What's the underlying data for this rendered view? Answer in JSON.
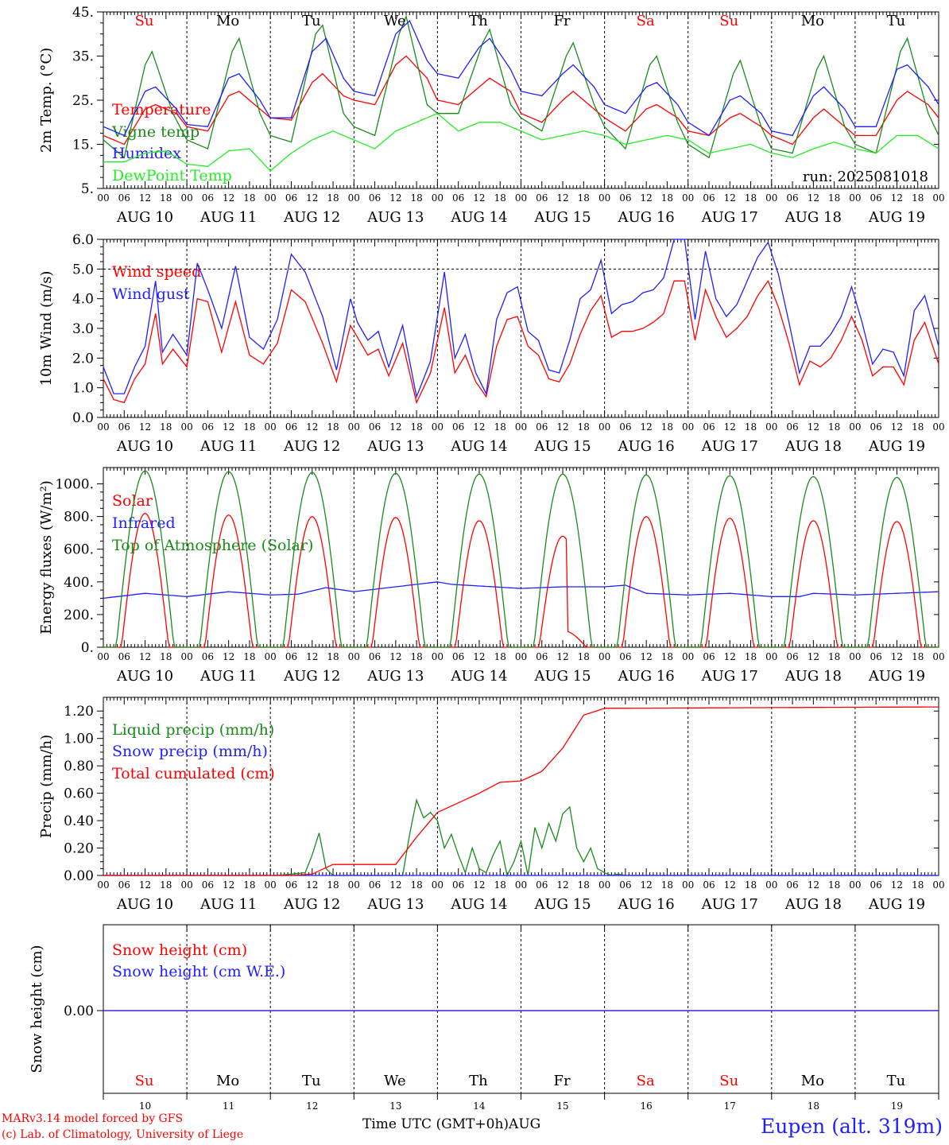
{
  "days": [
    "Su",
    "Mo",
    "Tu",
    "We",
    "Th",
    "Fr",
    "Sa",
    "Su",
    "Mo",
    "Tu"
  ],
  "weekend_days": [
    0,
    6,
    7
  ],
  "date_labels": [
    "AUG 10",
    "AUG 11",
    "AUG 12",
    "AUG 13",
    "AUG 14",
    "AUG 15",
    "AUG 16",
    "AUG 17",
    "AUG 18",
    "AUG 19"
  ],
  "bottom_dates": [
    "10",
    "11",
    "12",
    "13",
    "14",
    "15",
    "16",
    "17",
    "18",
    "19"
  ],
  "hour_ticks": [
    "00",
    "06",
    "12",
    "18"
  ],
  "run_label": "run: 2025081018",
  "footer": {
    "credit_line1": "MARv3.14 model forced by GFS",
    "credit_line2": "(c) Lab. of Climatology, University of Liege",
    "x_title": "Time UTC (GMT+0h)AUG",
    "station": "Eupen (alt. 319m)"
  },
  "colors": {
    "red": "#ff0000",
    "green": "#1a8a1a",
    "blue": "#1f1fff",
    "light_green": "#22ee22",
    "weekend": "#ff0000",
    "grid": "#000000"
  },
  "chart_data": [
    {
      "type": "line",
      "ylabel": "2m Temp. (°C)",
      "ylim": [
        5,
        45
      ],
      "yticks": [
        5,
        15,
        25,
        35,
        45
      ],
      "ytick_labels": [
        "5.",
        "15.",
        "25.",
        "35.",
        "45."
      ],
      "x_unit": "hours since Aug 10 00 UTC",
      "series": [
        {
          "name": "Temperature",
          "color": "red",
          "x": [
            0,
            6,
            12,
            15,
            21,
            24,
            30,
            36,
            39,
            45,
            48,
            54,
            60,
            63,
            69,
            72,
            78,
            84,
            87,
            93,
            96,
            102,
            108,
            111,
            117,
            120,
            126,
            132,
            135,
            141,
            144,
            150,
            156,
            159,
            165,
            168,
            174,
            180,
            183,
            189,
            192,
            198,
            204,
            207,
            213,
            216,
            222,
            228,
            231,
            237,
            240
          ],
          "y": [
            17,
            15,
            23,
            24,
            22,
            19,
            18,
            26,
            27,
            23,
            21,
            20.5,
            29,
            31,
            26,
            25,
            24,
            33,
            35,
            30,
            25,
            24,
            28,
            30,
            27,
            22,
            20,
            25,
            27,
            23,
            21,
            18,
            23,
            24,
            21,
            18,
            17,
            21,
            22,
            19,
            17,
            15,
            21,
            23,
            19,
            17,
            17,
            25,
            27,
            24,
            21
          ]
        },
        {
          "name": "Vigne temp",
          "color": "green",
          "x": [
            0,
            6,
            12,
            14,
            20,
            24,
            30,
            37,
            39,
            45,
            48,
            54,
            61,
            63,
            69,
            72,
            78,
            85,
            87,
            93,
            96,
            102,
            109,
            111,
            117,
            120,
            126,
            133,
            135,
            141,
            144,
            150,
            157,
            159,
            165,
            168,
            174,
            181,
            183,
            189,
            192,
            198,
            205,
            207,
            213,
            216,
            222,
            229,
            231,
            237,
            240
          ],
          "y": [
            16,
            12,
            33,
            36,
            22,
            16,
            14,
            36,
            39,
            22,
            17,
            15.5,
            40,
            42,
            22,
            19,
            17,
            40,
            44,
            24,
            22,
            22,
            38,
            41,
            24,
            21,
            18,
            35,
            38,
            24,
            19,
            14,
            33,
            35,
            20,
            15,
            12,
            31,
            34,
            19,
            14,
            13,
            32,
            35,
            19,
            15,
            13,
            36,
            39,
            22,
            17
          ]
        },
        {
          "name": "Humidex",
          "color": "blue",
          "x": [
            0,
            6,
            12,
            15,
            21,
            24,
            30,
            36,
            39,
            45,
            48,
            54,
            60,
            64,
            69,
            72,
            78,
            84,
            88,
            93,
            96,
            102,
            108,
            111,
            117,
            120,
            126,
            132,
            135,
            141,
            144,
            150,
            156,
            159,
            165,
            168,
            174,
            180,
            183,
            189,
            192,
            198,
            204,
            207,
            213,
            216,
            222,
            228,
            231,
            237,
            240
          ],
          "y": [
            19,
            17,
            27,
            28,
            23,
            19.5,
            19,
            30,
            31,
            25,
            21,
            21,
            36,
            39,
            30,
            27,
            26,
            40,
            43,
            34,
            31,
            30,
            37,
            39,
            32,
            27,
            26,
            31,
            33,
            28,
            24,
            22,
            28,
            29,
            24,
            20,
            17,
            25,
            26,
            22,
            18,
            17,
            26,
            28,
            23,
            19,
            19,
            32,
            33,
            28,
            24
          ]
        },
        {
          "name": "DewPoint Temp",
          "color": "light_green",
          "x": [
            0,
            6,
            12,
            18,
            24,
            30,
            36,
            42,
            48,
            54,
            60,
            66,
            72,
            78,
            84,
            90,
            96,
            102,
            108,
            114,
            120,
            126,
            132,
            138,
            144,
            150,
            156,
            162,
            168,
            174,
            180,
            186,
            192,
            198,
            204,
            210,
            216,
            222,
            228,
            234,
            240
          ],
          "y": [
            11,
            11,
            13,
            13.5,
            10.5,
            10,
            13.5,
            14,
            9,
            13,
            16,
            18,
            16,
            14,
            18,
            20,
            22,
            18,
            20,
            20,
            18,
            16,
            17,
            18,
            17,
            15,
            16,
            17,
            16,
            13,
            14,
            15,
            13,
            12,
            14,
            15.5,
            14,
            13,
            17,
            17,
            14
          ]
        }
      ]
    },
    {
      "type": "line",
      "ylabel": "10m Wind (m/s)",
      "ylim": [
        0,
        6
      ],
      "yticks": [
        0,
        1,
        2,
        3,
        4,
        5,
        6
      ],
      "ytick_labels": [
        "0.0",
        "1.0",
        "2.0",
        "3.0",
        "4.0",
        "5.0",
        "6.0"
      ],
      "x_unit": "hours since Aug 10 00 UTC",
      "reference_line": 5,
      "series": [
        {
          "name": "Wind speed",
          "color": "red",
          "x": [
            0,
            3,
            6,
            9,
            12,
            15,
            17,
            20,
            24,
            27,
            30,
            34,
            38,
            42,
            46,
            50,
            54,
            58,
            63,
            67,
            71,
            73,
            76,
            79,
            82,
            86,
            90,
            94,
            98,
            101,
            104,
            107,
            110,
            113,
            116,
            119,
            122,
            125,
            128,
            131,
            134,
            137,
            140,
            143,
            146,
            149,
            152,
            155,
            158,
            161,
            164,
            167,
            170,
            173,
            176,
            179,
            182,
            185,
            188,
            191,
            194,
            197,
            200,
            203,
            206,
            209,
            212,
            215,
            218,
            221,
            224,
            227,
            230,
            233,
            236,
            240
          ],
          "y": [
            1.3,
            0.6,
            0.5,
            1.3,
            1.8,
            3.5,
            1.8,
            2.3,
            1.7,
            4,
            3.9,
            2.2,
            3.9,
            2.1,
            1.8,
            2.5,
            4.3,
            3.9,
            2.5,
            1.2,
            3.1,
            2.7,
            2.1,
            2.3,
            1.4,
            2.5,
            0.5,
            1.5,
            3.7,
            1.5,
            2.1,
            1.2,
            0.7,
            2.4,
            3.3,
            3.4,
            2.4,
            2.1,
            1.3,
            1.2,
            1.8,
            2.8,
            3.6,
            4.1,
            2.7,
            2.9,
            2.9,
            3,
            3.2,
            3.5,
            4.6,
            4.6,
            2.6,
            4.3,
            3.4,
            2.7,
            3,
            3.4,
            4.1,
            4.6,
            3.7,
            2.5,
            1.1,
            1.9,
            1.7,
            2.0,
            2.6,
            3.4,
            2.6,
            1.4,
            1.7,
            1.7,
            1.1,
            2.6,
            3.2,
            1.8
          ]
        },
        {
          "name": "Wind gust",
          "color": "blue",
          "x": [
            0,
            3,
            6,
            9,
            12,
            15,
            17,
            20,
            24,
            27,
            30,
            34,
            38,
            42,
            46,
            50,
            54,
            58,
            63,
            67,
            71,
            73,
            76,
            79,
            82,
            86,
            90,
            94,
            98,
            101,
            104,
            107,
            110,
            113,
            116,
            119,
            122,
            125,
            128,
            131,
            134,
            137,
            140,
            143,
            146,
            149,
            152,
            155,
            158,
            161,
            164,
            167,
            170,
            173,
            176,
            179,
            182,
            185,
            188,
            191,
            194,
            197,
            200,
            203,
            206,
            209,
            212,
            215,
            218,
            221,
            224,
            227,
            230,
            233,
            236,
            240
          ],
          "y": [
            1.7,
            0.8,
            0.8,
            1.7,
            2.4,
            4.6,
            2.2,
            2.8,
            2.1,
            5.2,
            4.3,
            3.0,
            5.1,
            2.7,
            2.3,
            3.3,
            5.5,
            4.9,
            3.4,
            1.6,
            4.0,
            3.2,
            2.6,
            2.9,
            1.7,
            3.1,
            0.7,
            1.9,
            4.9,
            2.0,
            2.8,
            1.5,
            0.8,
            3.3,
            4.2,
            4.4,
            2.9,
            2.6,
            1.6,
            1.5,
            2.6,
            4.0,
            4.3,
            5.3,
            3.5,
            3.8,
            3.9,
            4.2,
            4.3,
            4.7,
            6.0,
            6.0,
            3.3,
            5.6,
            4.0,
            3.4,
            3.8,
            4.6,
            5.4,
            5.9,
            4.8,
            3.2,
            1.5,
            2.4,
            2.4,
            2.8,
            3.4,
            4.4,
            3.2,
            1.8,
            2.3,
            2.2,
            1.4,
            3.6,
            4.1,
            2.4
          ]
        }
      ]
    },
    {
      "type": "line",
      "ylabel": "Energy fluxes (W/m²)",
      "ylim": [
        0,
        1100
      ],
      "yticks": [
        0,
        200,
        400,
        600,
        800,
        1000
      ],
      "ytick_labels": [
        "0.",
        "200.",
        "400.",
        "600.",
        "800.",
        "1000."
      ],
      "x_unit": "hours since Aug 10 00 UTC",
      "daily_peak_hour": 12,
      "series": [
        {
          "name": "Solar",
          "color": "red",
          "daily_peaks": [
            820,
            810,
            800,
            795,
            775,
            680,
            800,
            790,
            775,
            770
          ]
        },
        {
          "name": "Infrared",
          "color": "blue",
          "x": [
            0,
            12,
            24,
            36,
            48,
            56,
            64,
            72,
            84,
            96,
            100,
            108,
            120,
            132,
            144,
            150,
            156,
            168,
            180,
            192,
            200,
            204,
            216,
            228,
            240
          ],
          "y": [
            300,
            330,
            310,
            340,
            320,
            325,
            365,
            340,
            370,
            400,
            385,
            375,
            360,
            370,
            370,
            380,
            330,
            320,
            330,
            310,
            310,
            330,
            320,
            330,
            340
          ]
        },
        {
          "name": "Top of Atmosphere (Solar)",
          "color": "green",
          "daily_peaks": [
            1080,
            1075,
            1070,
            1065,
            1060,
            1060,
            1055,
            1050,
            1045,
            1040
          ]
        }
      ]
    },
    {
      "type": "line",
      "ylabel": "Precip (mm/h)",
      "ylim": [
        0,
        1.3
      ],
      "yticks": [
        0,
        0.2,
        0.4,
        0.6,
        0.8,
        1.0,
        1.2
      ],
      "ytick_labels": [
        "0.00",
        "0.20",
        "0.40",
        "0.60",
        "0.80",
        "1.00",
        "1.20"
      ],
      "x_unit": "hours since Aug 10 00 UTC",
      "series": [
        {
          "name": "Liquid precip (mm/h)",
          "color": "green",
          "x": [
            0,
            50,
            54,
            58,
            60,
            62,
            64,
            66,
            68,
            70,
            72,
            86,
            88,
            90,
            92,
            94,
            96,
            98,
            100,
            102,
            104,
            106,
            108,
            110,
            112,
            114,
            116,
            118,
            120,
            122,
            124,
            126,
            128,
            130,
            132,
            134,
            136,
            138,
            140,
            142,
            144,
            146,
            148,
            150,
            240
          ],
          "y": [
            0,
            0,
            0.01,
            0.02,
            0.15,
            0.31,
            0.05,
            0,
            0,
            0,
            0,
            0,
            0.3,
            0.55,
            0.42,
            0.46,
            0.4,
            0.2,
            0.3,
            0.15,
            0.02,
            0.2,
            0.05,
            0.02,
            0.15,
            0.25,
            0,
            0.1,
            0.25,
            0,
            0.35,
            0.2,
            0.38,
            0.25,
            0.45,
            0.5,
            0.2,
            0.1,
            0.2,
            0.05,
            0.02,
            0,
            0.01,
            0,
            0
          ]
        },
        {
          "name": "Snow precip (mm/h)",
          "color": "blue",
          "x": [
            0,
            240
          ],
          "y": [
            0,
            0
          ]
        },
        {
          "name": "Total cumulated (cm)",
          "color": "red",
          "x": [
            0,
            54,
            60,
            66,
            84,
            90,
            96,
            102,
            108,
            114,
            120,
            126,
            132,
            138,
            144,
            240
          ],
          "y": [
            0,
            0,
            0.01,
            0.08,
            0.08,
            0.28,
            0.46,
            0.53,
            0.6,
            0.68,
            0.69,
            0.76,
            0.93,
            1.17,
            1.22,
            1.23
          ]
        }
      ]
    },
    {
      "type": "line",
      "ylabel": "Snow height (cm)",
      "ytick_labels": [
        "0.00"
      ],
      "x_unit": "hours since Aug 10 00 UTC",
      "series": [
        {
          "name": "Snow height (cm)",
          "color": "red",
          "x": [
            0,
            240
          ],
          "y": [
            0,
            0
          ]
        },
        {
          "name": "Snow height (cm W.E.)",
          "color": "blue",
          "x": [
            0,
            240
          ],
          "y": [
            0,
            0
          ]
        }
      ]
    }
  ]
}
